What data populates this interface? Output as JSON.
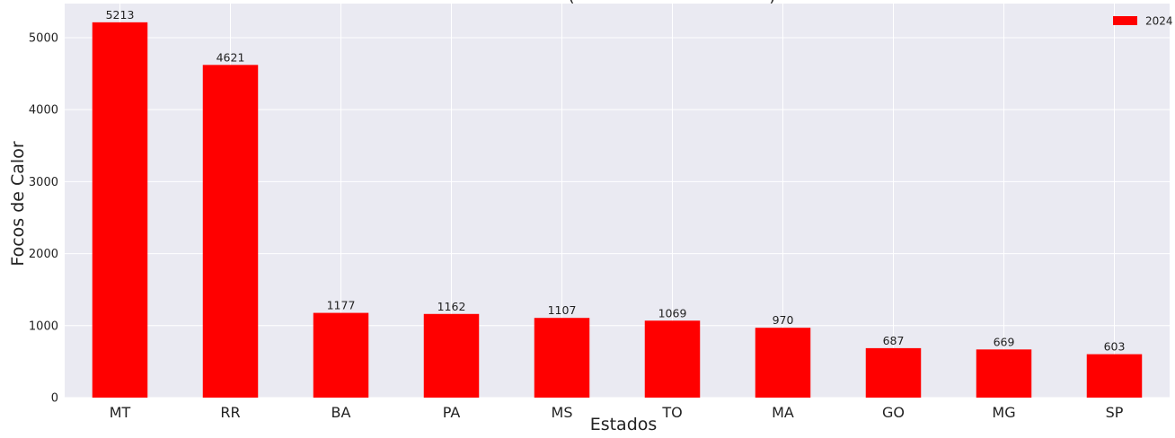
{
  "chart_data": {
    "type": "bar",
    "title_fragment": "(",
    "title_fragment_end": ")",
    "xlabel": "Estados",
    "ylabel": "Focos de Calor",
    "categories": [
      "MT",
      "RR",
      "BA",
      "PA",
      "MS",
      "TO",
      "MA",
      "GO",
      "MG",
      "SP"
    ],
    "series": [
      {
        "name": "2024",
        "values": [
          5213,
          4621,
          1177,
          1162,
          1107,
          1069,
          970,
          687,
          669,
          603
        ],
        "color": "#ff0000"
      }
    ],
    "data_labels": [
      "5213",
      "4621",
      "1177",
      "1162",
      "1107",
      "1069",
      "970",
      "687",
      "669",
      "603"
    ],
    "yticks": [
      "0",
      "1000",
      "2000",
      "3000",
      "4000",
      "5000"
    ],
    "ytick_values": [
      0,
      1000,
      2000,
      3000,
      4000,
      5000
    ],
    "ylim": [
      0,
      5473
    ],
    "grid": true,
    "legend_position": "top-right",
    "background_color": "#eaeaf2",
    "grid_color": "#ffffff"
  }
}
